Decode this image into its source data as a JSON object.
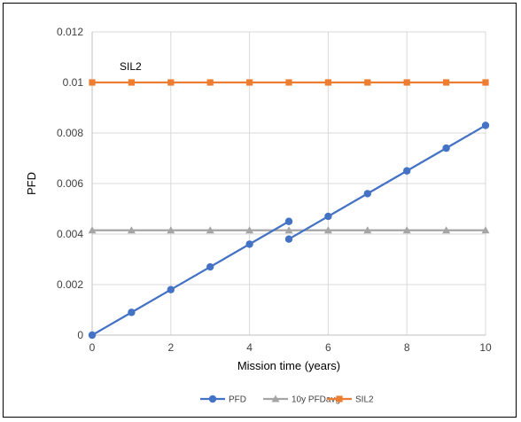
{
  "chart_data": {
    "type": "line",
    "xlabel": "Mission time (years)",
    "ylabel": "PFD",
    "xlim": [
      0,
      10
    ],
    "ylim": [
      0,
      0.012
    ],
    "x_ticks": [
      0,
      2,
      4,
      6,
      8,
      10
    ],
    "y_ticks": [
      0,
      0.002,
      0.004,
      0.006,
      0.008,
      0.01,
      0.012
    ],
    "x_tick_labels": [
      "0",
      "2",
      "4",
      "6",
      "8",
      "10"
    ],
    "y_tick_labels": [
      "0",
      "0.002",
      "0.004",
      "0.006",
      "0.008",
      "0.01",
      "0.012"
    ],
    "grid": true,
    "legend_position": "bottom",
    "annotations": [
      {
        "text": "SIL2"
      }
    ],
    "series": [
      {
        "name": "PFD",
        "color": "#4472C4",
        "marker": "circle",
        "segments": [
          {
            "x": [
              0,
              1,
              2,
              3,
              4,
              5
            ],
            "y": [
              0,
              0.0009,
              0.0018,
              0.0027,
              0.0036,
              0.0045
            ]
          },
          {
            "x": [
              5,
              6,
              7,
              8,
              9,
              10
            ],
            "y": [
              0.0038,
              0.0047,
              0.0056,
              0.0065,
              0.0074,
              0.0083
            ]
          }
        ]
      },
      {
        "name": "10y PFDavg",
        "color": "#A5A5A5",
        "marker": "triangle",
        "x": [
          0,
          1,
          2,
          3,
          4,
          5,
          6,
          7,
          8,
          9,
          10
        ],
        "y": [
          0.00415,
          0.00415,
          0.00415,
          0.00415,
          0.00415,
          0.00415,
          0.00415,
          0.00415,
          0.00415,
          0.00415,
          0.00415
        ]
      },
      {
        "name": "SIL2",
        "color": "#ED7D31",
        "marker": "square",
        "x": [
          0,
          1,
          2,
          3,
          4,
          5,
          6,
          7,
          8,
          9,
          10
        ],
        "y": [
          0.01,
          0.01,
          0.01,
          0.01,
          0.01,
          0.01,
          0.01,
          0.01,
          0.01,
          0.01,
          0.01
        ]
      }
    ]
  }
}
